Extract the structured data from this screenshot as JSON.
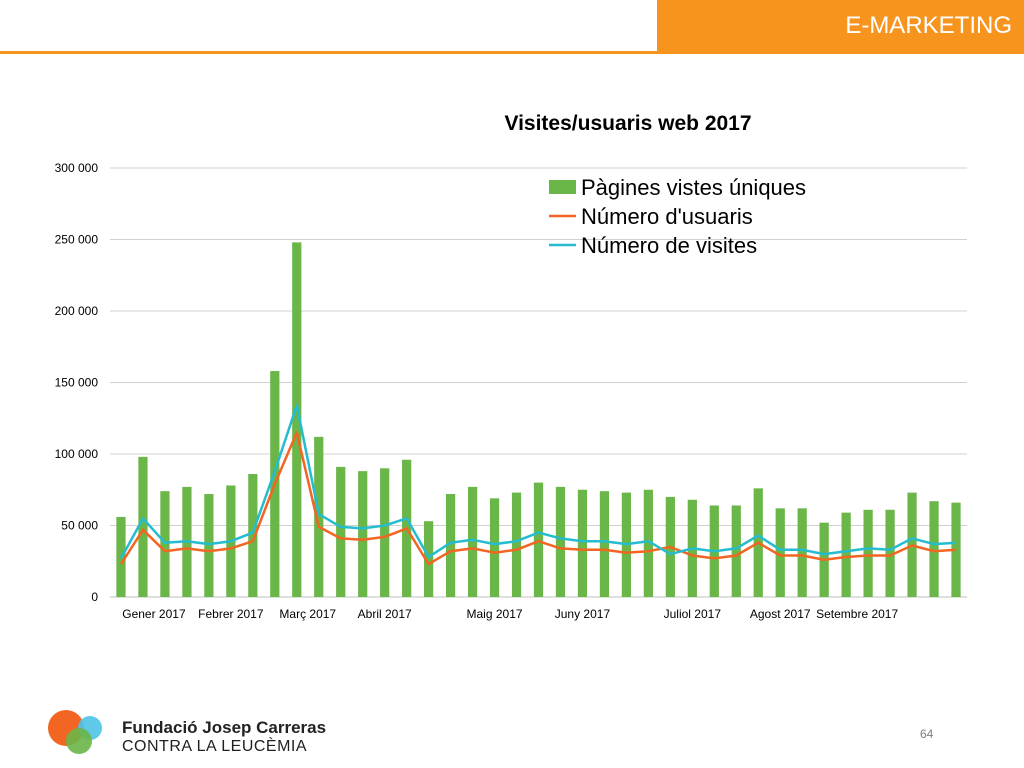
{
  "header": {
    "title": "E-MARKETING"
  },
  "footer": {
    "org_name": "Fundació Josep Carreras",
    "org_subtitle": "CONTRA LA LEUCÈMIA",
    "page_number": "64"
  },
  "colors": {
    "accent": "#f7941d",
    "bars": "#6ab648",
    "line_users": "#f26522",
    "line_visits": "#26bccf"
  },
  "chart_data": {
    "type": "bar",
    "title": "Visites/usuaris web 2017",
    "xlabel": "",
    "ylabel": "",
    "ylim": [
      0,
      300000
    ],
    "yticks": [
      0,
      50000,
      100000,
      150000,
      200000,
      250000,
      300000
    ],
    "ytick_labels": [
      "0",
      "50 000",
      "100 000",
      "150 000",
      "200 000",
      "250 000",
      "300 000"
    ],
    "grid": true,
    "legend_position": "top-right",
    "x_tick_labels": [
      {
        "label": "Gener 2017",
        "at": 1.5
      },
      {
        "label": "Febrer  2017",
        "at": 5
      },
      {
        "label": "Març  2017",
        "at": 8.5
      },
      {
        "label": "Abril  2017",
        "at": 12
      },
      {
        "label": "Maig  2017",
        "at": 17
      },
      {
        "label": "Juny  2017",
        "at": 21
      },
      {
        "label": "Juliol 2017",
        "at": 26
      },
      {
        "label": "Agost 2017",
        "at": 30
      },
      {
        "label": "Setembre 2017",
        "at": 33.5
      }
    ],
    "series": [
      {
        "name": "Pàgines vistes úniques",
        "type": "bar",
        "values": [
          56000,
          98000,
          74000,
          77000,
          72000,
          78000,
          86000,
          158000,
          248000,
          112000,
          91000,
          88000,
          90000,
          96000,
          53000,
          72000,
          77000,
          69000,
          73000,
          80000,
          77000,
          75000,
          74000,
          73000,
          75000,
          70000,
          68000,
          64000,
          64000,
          76000,
          62000,
          62000,
          52000,
          59000,
          61000,
          61000,
          73000,
          67000,
          66000
        ]
      },
      {
        "name": "Número d'usuaris",
        "type": "line",
        "values": [
          23000,
          47000,
          32000,
          34000,
          32000,
          34000,
          39000,
          79000,
          115000,
          49000,
          41000,
          40000,
          42000,
          48000,
          23000,
          32000,
          34000,
          31000,
          33000,
          39000,
          34000,
          33000,
          33000,
          31000,
          32000,
          35000,
          29000,
          27000,
          29000,
          38000,
          29000,
          29000,
          26000,
          28000,
          29000,
          29000,
          36000,
          32000,
          33000
        ]
      },
      {
        "name": "Número de visites",
        "type": "line",
        "values": [
          27000,
          55000,
          38000,
          39000,
          37000,
          39000,
          45000,
          88000,
          134000,
          58000,
          49000,
          48000,
          50000,
          55000,
          28000,
          38000,
          40000,
          37000,
          39000,
          45000,
          41000,
          39000,
          39000,
          37000,
          39000,
          30000,
          34000,
          32000,
          34000,
          43000,
          33000,
          33000,
          30000,
          32000,
          34000,
          33000,
          41000,
          37000,
          38000
        ]
      }
    ]
  }
}
